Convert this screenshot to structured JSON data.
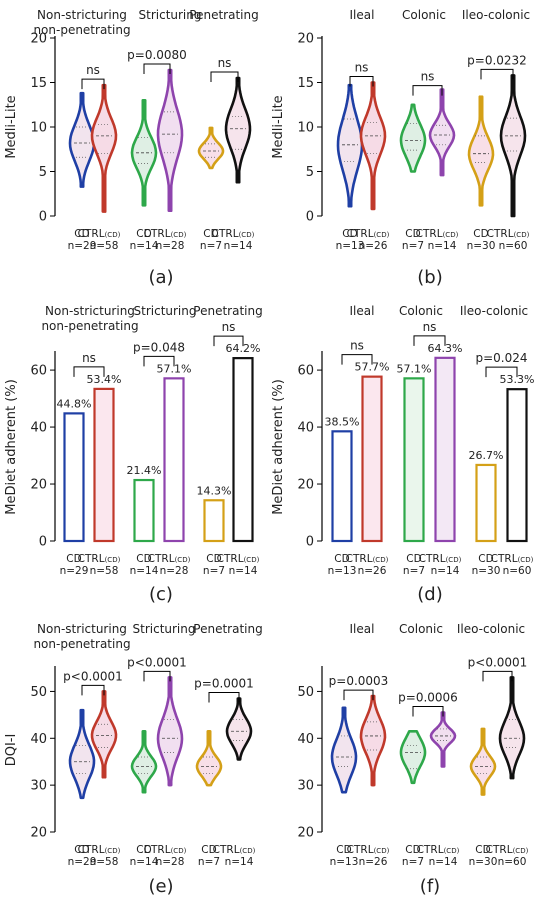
{
  "chart_data": [
    {
      "panel": "(a)",
      "type": "violin",
      "ylabel": "Medli-Lite",
      "ylim": [
        0,
        20
      ],
      "yticks": [
        0,
        5,
        10,
        15,
        20
      ],
      "groups": [
        {
          "title": "Non-stricturing\nnon-penetrating",
          "cats": [
            {
              "name": "CD",
              "n": "n=29",
              "color": "#1f3fa5",
              "fill": "#f2e4ee",
              "min": 3.3,
              "q1": 6.6,
              "median": 8.2,
              "q3": 10.0,
              "max": 13.8
            },
            {
              "name": "CTRL",
              "sub": "(CD)",
              "n": "n=58",
              "color": "#c0392b",
              "fill": "#f6dbe6",
              "min": 0.5,
              "q1": 7.0,
              "median": 9.0,
              "q3": 10.3,
              "max": 14.7
            }
          ],
          "sig": "ns"
        },
        {
          "title": "Stricturing",
          "cats": [
            {
              "name": "CD",
              "n": "n=14",
              "color": "#2ea84a",
              "fill": "#dfefe4",
              "min": 1.2,
              "q1": 5.9,
              "median": 7.1,
              "q3": 8.8,
              "max": 13.0
            },
            {
              "name": "CTRL",
              "sub": "(CD)",
              "n": "n=28",
              "color": "#8e44ad",
              "fill": "#f1dff0",
              "min": 0.6,
              "q1": 7.1,
              "median": 9.2,
              "q3": 11.7,
              "max": 16.4
            }
          ],
          "sig": "p=0.0080"
        },
        {
          "title": "Penetrating",
          "cats": [
            {
              "name": "CD",
              "n": "n=7",
              "color": "#d4a017",
              "fill": "#f8dfe8",
              "min": 5.4,
              "q1": 6.6,
              "median": 7.3,
              "q3": 8.1,
              "max": 9.9
            },
            {
              "name": "CTRL",
              "sub": "(CD)",
              "n": "n=14",
              "color": "#111111",
              "fill": "#f6e4ec",
              "min": 3.8,
              "q1": 7.5,
              "median": 9.8,
              "q3": 11.2,
              "max": 15.5
            }
          ],
          "sig": "ns"
        }
      ]
    },
    {
      "panel": "(b)",
      "type": "violin",
      "ylabel": "Medli-Lite",
      "ylim": [
        0,
        20
      ],
      "yticks": [
        0,
        5,
        10,
        15,
        20
      ],
      "groups": [
        {
          "title": "Ileal",
          "cats": [
            {
              "name": "CD",
              "n": "n=13",
              "color": "#1f3fa5",
              "fill": "#f2e4ee",
              "min": 1.1,
              "q1": 6.1,
              "median": 8.0,
              "q3": 10.9,
              "max": 14.7
            },
            {
              "name": "CTRL",
              "sub": "(CD)",
              "n": "n=26",
              "color": "#c0392b",
              "fill": "#f6dbe6",
              "min": 0.8,
              "q1": 7.0,
              "median": 9.0,
              "q3": 10.5,
              "max": 15.0
            }
          ],
          "sig": "ns"
        },
        {
          "title": "Colonic",
          "cats": [
            {
              "name": "CD",
              "n": "n=7",
              "color": "#2ea84a",
              "fill": "#dfefe4",
              "min": 5.0,
              "q1": 7.4,
              "median": 8.5,
              "q3": 10.4,
              "max": 12.5
            },
            {
              "name": "CTRL",
              "sub": "(CD)",
              "n": "n=14",
              "color": "#8e44ad",
              "fill": "#f1dff0",
              "min": 4.6,
              "q1": 8.0,
              "median": 9.1,
              "q3": 10.2,
              "max": 14.2
            }
          ],
          "sig": "ns"
        },
        {
          "title": "Ileo-colonic",
          "cats": [
            {
              "name": "CD",
              "n": "n=30",
              "color": "#d4a017",
              "fill": "#f8dfe8",
              "min": 1.2,
              "q1": 6.0,
              "median": 7.0,
              "q3": 9.0,
              "max": 13.4
            },
            {
              "name": "CTRL",
              "sub": "(CD)",
              "n": "n=60",
              "color": "#111111",
              "fill": "#f6e4ec",
              "min": 0.0,
              "q1": 7.3,
              "median": 9.0,
              "q3": 11.0,
              "max": 15.8
            }
          ],
          "sig": "p=0.0232"
        }
      ]
    },
    {
      "panel": "(c)",
      "type": "bar",
      "ylabel": "MeDiet adherent (%)",
      "ylim": [
        0,
        66
      ],
      "yticks": [
        0,
        20,
        40,
        60
      ],
      "groups": [
        {
          "title": "Non-stricturing\nnon-penetrating",
          "cats": [
            {
              "name": "CD",
              "n": "n=29",
              "color": "#1f3fa5",
              "fill": "#ffffff",
              "value": 44.8,
              "label": "44.8%"
            },
            {
              "name": "CTRL",
              "sub": "(CD)",
              "n": "n=58",
              "color": "#c0392b",
              "fill": "#fbe7ee",
              "value": 53.4,
              "label": "53.4%"
            }
          ],
          "sig": "ns"
        },
        {
          "title": "Stricturing",
          "cats": [
            {
              "name": "CD",
              "n": "n=14",
              "color": "#2ea84a",
              "fill": "#ffffff",
              "value": 21.4,
              "label": "21.4%"
            },
            {
              "name": "CTRL",
              "sub": "(CD)",
              "n": "n=28",
              "color": "#8e44ad",
              "fill": "#ffffff",
              "value": 57.1,
              "label": "57.1%"
            }
          ],
          "sig": "p=0.048"
        },
        {
          "title": "Penetrating",
          "cats": [
            {
              "name": "CD",
              "n": "n=7",
              "color": "#d4a017",
              "fill": "#ffffff",
              "value": 14.3,
              "label": "14.3%"
            },
            {
              "name": "CTRL",
              "sub": "(CD)",
              "n": "n=14",
              "color": "#111111",
              "fill": "#ffffff",
              "value": 64.2,
              "label": "64.2%"
            }
          ],
          "sig": "ns"
        }
      ]
    },
    {
      "panel": "(d)",
      "type": "bar",
      "ylabel": "MeDiet adherent (%)",
      "ylim": [
        0,
        66
      ],
      "yticks": [
        0,
        20,
        40,
        60
      ],
      "groups": [
        {
          "title": "Ileal",
          "cats": [
            {
              "name": "CD",
              "n": "n=13",
              "color": "#1f3fa5",
              "fill": "#ffffff",
              "value": 38.5,
              "label": "38.5%"
            },
            {
              "name": "CTRL",
              "sub": "(CD)",
              "n": "n=26",
              "color": "#c0392b",
              "fill": "#fbe7ee",
              "value": 57.7,
              "label": "57.7%"
            }
          ],
          "sig": "ns"
        },
        {
          "title": "Colonic",
          "cats": [
            {
              "name": "CD",
              "n": "n=7",
              "color": "#2ea84a",
              "fill": "#eaf6ec",
              "value": 57.1,
              "label": "57.1%"
            },
            {
              "name": "CTRL",
              "sub": "(CD)",
              "n": "n=14",
              "color": "#8e44ad",
              "fill": "#f3e8f5",
              "value": 64.3,
              "label": "64.3%"
            }
          ],
          "sig": "ns"
        },
        {
          "title": "Ileo-colonic",
          "cats": [
            {
              "name": "CD",
              "n": "n=30",
              "color": "#d4a017",
              "fill": "#ffffff",
              "value": 26.7,
              "label": "26.7%"
            },
            {
              "name": "CTRL",
              "sub": "(CD)",
              "n": "n=60",
              "color": "#111111",
              "fill": "#ffffff",
              "value": 53.3,
              "label": "53.3%"
            }
          ],
          "sig": "p=0.024"
        }
      ]
    },
    {
      "panel": "(e)",
      "type": "violin",
      "ylabel": "DQI-I",
      "ylim": [
        20,
        55
      ],
      "yticks": [
        20,
        30,
        40,
        50
      ],
      "groups": [
        {
          "title": "Non-stricturing\nnon-penetrating",
          "cats": [
            {
              "name": "CD",
              "n": "n=29",
              "color": "#1f3fa5",
              "fill": "#f2e4ee",
              "min": 27.3,
              "q1": 32.5,
              "median": 35.0,
              "q3": 38.5,
              "max": 46.0
            },
            {
              "name": "CTRL",
              "sub": "(CD)",
              "n": "n=58",
              "color": "#c0392b",
              "fill": "#f6dbe6",
              "min": 31.7,
              "q1": 38.0,
              "median": 40.6,
              "q3": 43.0,
              "max": 50.0
            }
          ],
          "sig": "p<0.0001"
        },
        {
          "title": "Stricturing",
          "cats": [
            {
              "name": "CD",
              "n": "n=14",
              "color": "#2ea84a",
              "fill": "#dfefe4",
              "min": 28.5,
              "q1": 32.5,
              "median": 34.0,
              "q3": 36.0,
              "max": 41.5
            },
            {
              "name": "CTRL",
              "sub": "(CD)",
              "n": "n=28",
              "color": "#8e44ad",
              "fill": "#f1dff0",
              "min": 30.0,
              "q1": 37.0,
              "median": 40.0,
              "q3": 44.0,
              "max": 53.0
            },
            {
              "skip": true
            }
          ],
          "sig": "p<0.0001"
        },
        {
          "title": "Penetrating",
          "cats": [
            {
              "name": "CD",
              "n": "n=7",
              "color": "#d4a017",
              "fill": "#f8dfe8",
              "min": 30.0,
              "q1": 32.5,
              "median": 34.0,
              "q3": 36.0,
              "max": 41.5
            },
            {
              "name": "CTRL",
              "sub": "(CD)",
              "n": "n=14",
              "color": "#111111",
              "fill": "#f6e4ec",
              "min": 35.5,
              "q1": 39.5,
              "median": 41.5,
              "q3": 44.0,
              "max": 48.5
            }
          ],
          "sig": "p=0.0001"
        }
      ]
    },
    {
      "panel": "(f)",
      "type": "violin",
      "ylabel": "",
      "ylim": [
        20,
        55
      ],
      "yticks": [
        20,
        30,
        40,
        50
      ],
      "groups": [
        {
          "title": "Ileal",
          "cats": [
            {
              "name": "CD",
              "n": "n=13",
              "color": "#1f3fa5",
              "fill": "#f2e4ee",
              "min": 28.5,
              "q1": 34.0,
              "median": 36.0,
              "q3": 40.5,
              "max": 46.5
            },
            {
              "name": "CTRL",
              "sub": "(CD)",
              "n": "n=26",
              "color": "#c0392b",
              "fill": "#f6dbe6",
              "min": 30.0,
              "q1": 37.5,
              "median": 40.5,
              "q3": 43.5,
              "max": 49.0
            }
          ],
          "sig": "p=0.0003"
        },
        {
          "title": "Colonic",
          "cats": [
            {
              "name": "CD",
              "n": "n=7",
              "color": "#2ea84a",
              "fill": "#dfefe4",
              "min": 30.5,
              "q1": 33.5,
              "median": 37.0,
              "q3": 38.5,
              "max": 41.5
            },
            {
              "name": "CTRL",
              "sub": "(CD)",
              "n": "n=14",
              "color": "#8e44ad",
              "fill": "#f1dff0",
              "min": 34.0,
              "q1": 39.5,
              "median": 40.5,
              "q3": 42.0,
              "max": 45.5
            }
          ],
          "sig": "p=0.0006"
        },
        {
          "title": "Ileo-colonic",
          "cats": [
            {
              "name": "CD",
              "n": "n=30",
              "color": "#d4a017",
              "fill": "#f8dfe8",
              "min": 28.0,
              "q1": 32.5,
              "median": 34.0,
              "q3": 36.0,
              "max": 42.0
            },
            {
              "name": "CTRL",
              "sub": "(CD)",
              "n": "n=60",
              "color": "#111111",
              "fill": "#f6e4ec",
              "min": 31.5,
              "q1": 38.0,
              "median": 40.0,
              "q3": 44.0,
              "max": 53.0
            }
          ],
          "sig": "p<0.0001"
        }
      ]
    }
  ]
}
